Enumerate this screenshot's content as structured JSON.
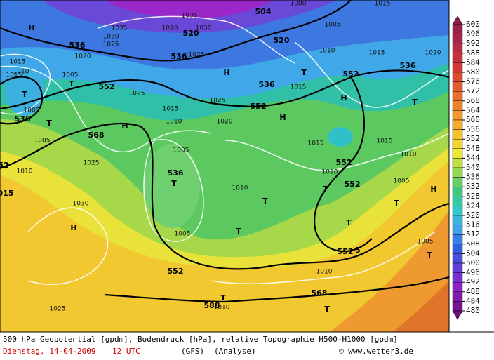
{
  "legend": {
    "levels": [
      600,
      596,
      592,
      588,
      584,
      580,
      576,
      572,
      568,
      564,
      560,
      556,
      552,
      548,
      544,
      540,
      536,
      532,
      528,
      524,
      520,
      516,
      512,
      508,
      504,
      500,
      496,
      492,
      488,
      484,
      480
    ]
  },
  "map_labels": [
    "H",
    "536",
    "1020",
    "1015",
    "1010",
    "T",
    "1005",
    "T",
    "552",
    "1025",
    "1005",
    "536",
    "T",
    "H",
    "568",
    "1005",
    "1025",
    "1010",
    "52",
    "015",
    "1030",
    "H",
    "1010",
    "1005",
    "1020",
    "1025",
    "536",
    "T",
    "1005",
    "T",
    "552",
    "1025",
    "T",
    "568",
    "1010",
    "T",
    "588",
    "1010",
    "552",
    "5",
    "T",
    "T",
    "1010",
    "T",
    "552",
    "1010",
    "552",
    "1015",
    "1015",
    "1010",
    "1005",
    "T",
    "H",
    "T",
    "1005",
    "H",
    "552",
    "1015",
    "H",
    "536",
    "1015",
    "T",
    "552",
    "H",
    "T",
    "536",
    "1020",
    "1015",
    "1010",
    "520",
    "504",
    "536",
    "1025",
    "520",
    "1030",
    "1020",
    "1035",
    "1030",
    "1025",
    "1035",
    "1005",
    "1015",
    "T",
    "1015",
    "1000"
  ],
  "footer": {
    "line1": "500 hPa Geopotential [gpdm], Bodendruck [hPa], relative Topographie H500-H1000 [gpdm]",
    "date": "Dienstag, 14-04-2009",
    "time": "12 UTC",
    "model": "(GFS)",
    "analysis": "(Analyse)",
    "copyright": "© www.wetter3.de"
  }
}
